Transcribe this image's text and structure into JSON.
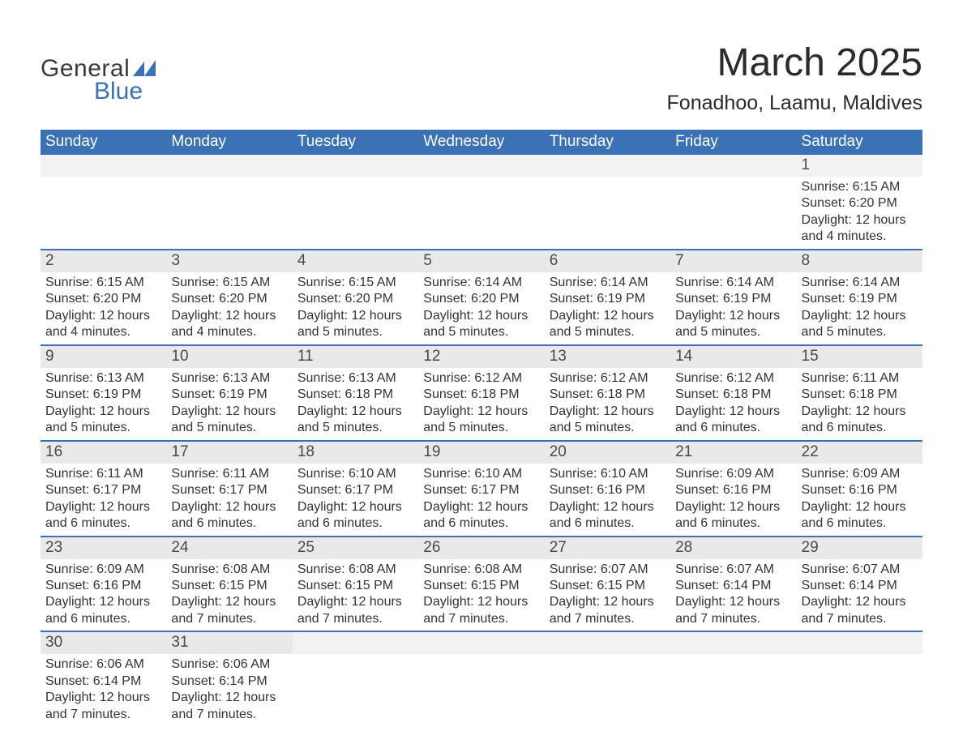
{
  "brand": {
    "name_part1": "General",
    "name_part2": "Blue",
    "text_color": "#3a3a3a",
    "accent_color": "#3a72b5"
  },
  "title": "March 2025",
  "location": "Fonadhoo, Laamu, Maldives",
  "colors": {
    "header_bg": "#3a72b5",
    "header_text": "#ffffff",
    "daynum_bg": "#e9e9e9",
    "daynum_bg_light": "#f2f2f2",
    "text": "#333333",
    "row_divider": "#3a72b5",
    "page_bg": "#ffffff"
  },
  "typography": {
    "title_fontsize": 48,
    "location_fontsize": 25,
    "header_fontsize": 19,
    "daynum_fontsize": 19,
    "detail_fontsize": 16,
    "font_family": "Arial"
  },
  "calendar": {
    "type": "table",
    "columns": [
      "Sunday",
      "Monday",
      "Tuesday",
      "Wednesday",
      "Thursday",
      "Friday",
      "Saturday"
    ],
    "weeks": [
      [
        null,
        null,
        null,
        null,
        null,
        null,
        {
          "day": "1",
          "sunrise": "Sunrise: 6:15 AM",
          "sunset": "Sunset: 6:20 PM",
          "daylight": "Daylight: 12 hours and 4 minutes."
        }
      ],
      [
        {
          "day": "2",
          "sunrise": "Sunrise: 6:15 AM",
          "sunset": "Sunset: 6:20 PM",
          "daylight": "Daylight: 12 hours and 4 minutes."
        },
        {
          "day": "3",
          "sunrise": "Sunrise: 6:15 AM",
          "sunset": "Sunset: 6:20 PM",
          "daylight": "Daylight: 12 hours and 4 minutes."
        },
        {
          "day": "4",
          "sunrise": "Sunrise: 6:15 AM",
          "sunset": "Sunset: 6:20 PM",
          "daylight": "Daylight: 12 hours and 5 minutes."
        },
        {
          "day": "5",
          "sunrise": "Sunrise: 6:14 AM",
          "sunset": "Sunset: 6:20 PM",
          "daylight": "Daylight: 12 hours and 5 minutes."
        },
        {
          "day": "6",
          "sunrise": "Sunrise: 6:14 AM",
          "sunset": "Sunset: 6:19 PM",
          "daylight": "Daylight: 12 hours and 5 minutes."
        },
        {
          "day": "7",
          "sunrise": "Sunrise: 6:14 AM",
          "sunset": "Sunset: 6:19 PM",
          "daylight": "Daylight: 12 hours and 5 minutes."
        },
        {
          "day": "8",
          "sunrise": "Sunrise: 6:14 AM",
          "sunset": "Sunset: 6:19 PM",
          "daylight": "Daylight: 12 hours and 5 minutes."
        }
      ],
      [
        {
          "day": "9",
          "sunrise": "Sunrise: 6:13 AM",
          "sunset": "Sunset: 6:19 PM",
          "daylight": "Daylight: 12 hours and 5 minutes."
        },
        {
          "day": "10",
          "sunrise": "Sunrise: 6:13 AM",
          "sunset": "Sunset: 6:19 PM",
          "daylight": "Daylight: 12 hours and 5 minutes."
        },
        {
          "day": "11",
          "sunrise": "Sunrise: 6:13 AM",
          "sunset": "Sunset: 6:18 PM",
          "daylight": "Daylight: 12 hours and 5 minutes."
        },
        {
          "day": "12",
          "sunrise": "Sunrise: 6:12 AM",
          "sunset": "Sunset: 6:18 PM",
          "daylight": "Daylight: 12 hours and 5 minutes."
        },
        {
          "day": "13",
          "sunrise": "Sunrise: 6:12 AM",
          "sunset": "Sunset: 6:18 PM",
          "daylight": "Daylight: 12 hours and 5 minutes."
        },
        {
          "day": "14",
          "sunrise": "Sunrise: 6:12 AM",
          "sunset": "Sunset: 6:18 PM",
          "daylight": "Daylight: 12 hours and 6 minutes."
        },
        {
          "day": "15",
          "sunrise": "Sunrise: 6:11 AM",
          "sunset": "Sunset: 6:18 PM",
          "daylight": "Daylight: 12 hours and 6 minutes."
        }
      ],
      [
        {
          "day": "16",
          "sunrise": "Sunrise: 6:11 AM",
          "sunset": "Sunset: 6:17 PM",
          "daylight": "Daylight: 12 hours and 6 minutes."
        },
        {
          "day": "17",
          "sunrise": "Sunrise: 6:11 AM",
          "sunset": "Sunset: 6:17 PM",
          "daylight": "Daylight: 12 hours and 6 minutes."
        },
        {
          "day": "18",
          "sunrise": "Sunrise: 6:10 AM",
          "sunset": "Sunset: 6:17 PM",
          "daylight": "Daylight: 12 hours and 6 minutes."
        },
        {
          "day": "19",
          "sunrise": "Sunrise: 6:10 AM",
          "sunset": "Sunset: 6:17 PM",
          "daylight": "Daylight: 12 hours and 6 minutes."
        },
        {
          "day": "20",
          "sunrise": "Sunrise: 6:10 AM",
          "sunset": "Sunset: 6:16 PM",
          "daylight": "Daylight: 12 hours and 6 minutes."
        },
        {
          "day": "21",
          "sunrise": "Sunrise: 6:09 AM",
          "sunset": "Sunset: 6:16 PM",
          "daylight": "Daylight: 12 hours and 6 minutes."
        },
        {
          "day": "22",
          "sunrise": "Sunrise: 6:09 AM",
          "sunset": "Sunset: 6:16 PM",
          "daylight": "Daylight: 12 hours and 6 minutes."
        }
      ],
      [
        {
          "day": "23",
          "sunrise": "Sunrise: 6:09 AM",
          "sunset": "Sunset: 6:16 PM",
          "daylight": "Daylight: 12 hours and 6 minutes."
        },
        {
          "day": "24",
          "sunrise": "Sunrise: 6:08 AM",
          "sunset": "Sunset: 6:15 PM",
          "daylight": "Daylight: 12 hours and 7 minutes."
        },
        {
          "day": "25",
          "sunrise": "Sunrise: 6:08 AM",
          "sunset": "Sunset: 6:15 PM",
          "daylight": "Daylight: 12 hours and 7 minutes."
        },
        {
          "day": "26",
          "sunrise": "Sunrise: 6:08 AM",
          "sunset": "Sunset: 6:15 PM",
          "daylight": "Daylight: 12 hours and 7 minutes."
        },
        {
          "day": "27",
          "sunrise": "Sunrise: 6:07 AM",
          "sunset": "Sunset: 6:15 PM",
          "daylight": "Daylight: 12 hours and 7 minutes."
        },
        {
          "day": "28",
          "sunrise": "Sunrise: 6:07 AM",
          "sunset": "Sunset: 6:14 PM",
          "daylight": "Daylight: 12 hours and 7 minutes."
        },
        {
          "day": "29",
          "sunrise": "Sunrise: 6:07 AM",
          "sunset": "Sunset: 6:14 PM",
          "daylight": "Daylight: 12 hours and 7 minutes."
        }
      ],
      [
        {
          "day": "30",
          "sunrise": "Sunrise: 6:06 AM",
          "sunset": "Sunset: 6:14 PM",
          "daylight": "Daylight: 12 hours and 7 minutes."
        },
        {
          "day": "31",
          "sunrise": "Sunrise: 6:06 AM",
          "sunset": "Sunset: 6:14 PM",
          "daylight": "Daylight: 12 hours and 7 minutes."
        },
        null,
        null,
        null,
        null,
        null
      ]
    ]
  }
}
